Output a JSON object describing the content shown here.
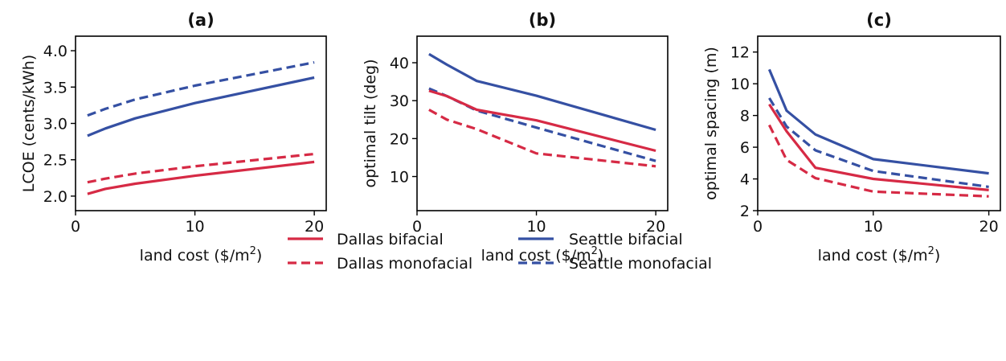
{
  "colors": {
    "dallas": "#d62a45",
    "seattle": "#3550a3"
  },
  "legend": {
    "dallas_bifacial": "Dallas bifacial",
    "seattle_bifacial": "Seattle bifacial",
    "dallas_monofacial": "Dallas monofacial",
    "seattle_monofacial": "Seattle monofacial"
  },
  "chart_data": [
    {
      "type": "line",
      "title": "(a)",
      "xlabel": "land cost ($/m",
      "xlabel_sup": "2",
      "xlabel_end": ")",
      "ylabel": "LCOE (cents/kWh)",
      "xlim": [
        0,
        21
      ],
      "ylim": [
        1.8,
        4.2
      ],
      "xticks": [
        0,
        10,
        20
      ],
      "yticks": [
        2.0,
        2.5,
        3.0,
        3.5,
        4.0
      ],
      "ytick_labels": [
        "2.0",
        "2.5",
        "3.0",
        "3.5",
        "4.0"
      ],
      "x": [
        1,
        2.5,
        5,
        10,
        20
      ],
      "series": [
        {
          "name": "Seattle monofacial",
          "city": "seattle",
          "dashed": true,
          "values": [
            3.11,
            3.2,
            3.33,
            3.52,
            3.84
          ]
        },
        {
          "name": "Seattle bifacial",
          "city": "seattle",
          "dashed": false,
          "values": [
            2.83,
            2.93,
            3.07,
            3.28,
            3.63
          ]
        },
        {
          "name": "Dallas monofacial",
          "city": "dallas",
          "dashed": true,
          "values": [
            2.19,
            2.24,
            2.31,
            2.41,
            2.58
          ]
        },
        {
          "name": "Dallas bifacial",
          "city": "dallas",
          "dashed": false,
          "values": [
            2.03,
            2.1,
            2.17,
            2.28,
            2.47
          ]
        }
      ]
    },
    {
      "type": "line",
      "title": "(b)",
      "xlabel": "land cost ($/m",
      "xlabel_sup": "2",
      "xlabel_end": ")",
      "ylabel": "optimal tilt (deg)",
      "xlim": [
        0,
        21
      ],
      "ylim": [
        1,
        47
      ],
      "xticks": [
        0,
        10,
        20
      ],
      "yticks": [
        10,
        20,
        30,
        40
      ],
      "ytick_labels": [
        "10",
        "20",
        "30",
        "40"
      ],
      "x": [
        1,
        2.5,
        5,
        10,
        20
      ],
      "series": [
        {
          "name": "Seattle bifacial",
          "city": "seattle",
          "dashed": false,
          "values": [
            42.3,
            39.5,
            35.2,
            31.3,
            22.3
          ]
        },
        {
          "name": "Seattle monofacial",
          "city": "seattle",
          "dashed": true,
          "values": [
            33.2,
            31.2,
            27.4,
            22.9,
            14.1
          ]
        },
        {
          "name": "Dallas bifacial",
          "city": "dallas",
          "dashed": false,
          "values": [
            32.6,
            31.2,
            27.6,
            24.8,
            16.8
          ]
        },
        {
          "name": "Dallas monofacial",
          "city": "dallas",
          "dashed": true,
          "values": [
            27.6,
            25.0,
            22.5,
            16.1,
            12.7
          ]
        }
      ]
    },
    {
      "type": "line",
      "title": "(c)",
      "xlabel": "land cost ($/m",
      "xlabel_sup": "2",
      "xlabel_end": ")",
      "ylabel": "optimal spacing (m)",
      "xlim": [
        0,
        21
      ],
      "ylim": [
        2,
        13
      ],
      "xticks": [
        0,
        10,
        20
      ],
      "yticks": [
        2,
        4,
        6,
        8,
        10,
        12
      ],
      "ytick_labels": [
        "2",
        "4",
        "6",
        "8",
        "10",
        "12"
      ],
      "x": [
        1,
        2.5,
        5,
        10,
        20
      ],
      "series": [
        {
          "name": "Seattle bifacial",
          "city": "seattle",
          "dashed": false,
          "values": [
            10.9,
            8.3,
            6.8,
            5.25,
            4.35
          ]
        },
        {
          "name": "Seattle monofacial",
          "city": "seattle",
          "dashed": true,
          "values": [
            9.1,
            7.3,
            5.8,
            4.5,
            3.5
          ]
        },
        {
          "name": "Dallas bifacial",
          "city": "dallas",
          "dashed": false,
          "values": [
            8.7,
            7.0,
            4.7,
            4.0,
            3.3
          ]
        },
        {
          "name": "Dallas monofacial",
          "city": "dallas",
          "dashed": true,
          "values": [
            7.4,
            5.2,
            4.05,
            3.2,
            2.9
          ]
        }
      ]
    }
  ]
}
